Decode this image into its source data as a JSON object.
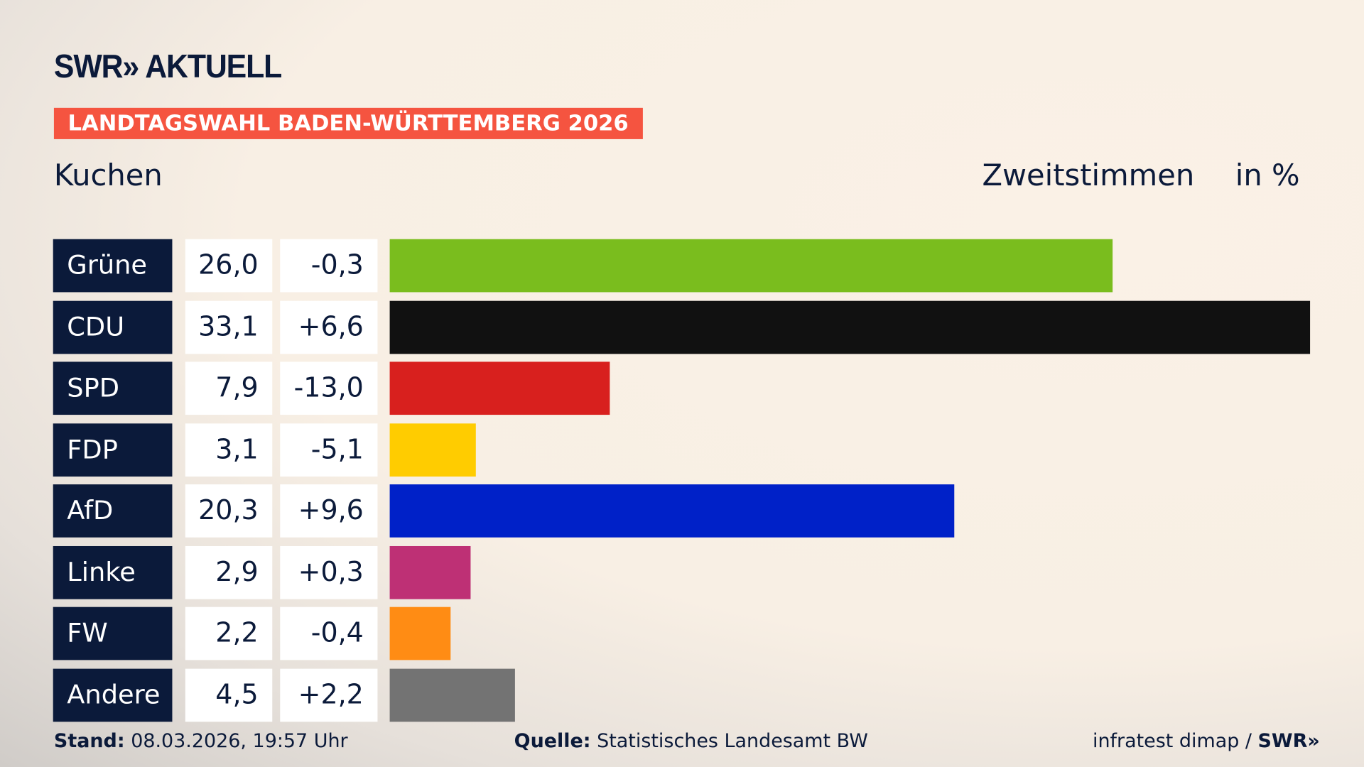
{
  "header": {
    "logo": "SWR» AKTUELL",
    "banner": "LANDTAGSWAHL BADEN-WÜRTTEMBERG 2026",
    "left_label": "Kuchen",
    "right_label": "Zweitstimmen",
    "unit": "in %"
  },
  "chart_data": {
    "type": "bar",
    "orientation": "horizontal",
    "categories": [
      "Grüne",
      "CDU",
      "SPD",
      "FDP",
      "AfD",
      "Linke",
      "FW",
      "Andere"
    ],
    "values": [
      26.0,
      33.1,
      7.9,
      3.1,
      20.3,
      2.9,
      2.2,
      4.5
    ],
    "value_labels": [
      "26,0",
      "33,1",
      "7,9",
      "3,1",
      "20,3",
      "2,9",
      "2,2",
      "4,5"
    ],
    "diff_labels": [
      "-0,3",
      "+6,6",
      "-13,0",
      "-5,1",
      "+9,6",
      "+0,3",
      "-0,4",
      "+2,2"
    ],
    "colors": [
      "#7abd1e",
      "#111111",
      "#d8201e",
      "#ffcc00",
      "#0021c8",
      "#be3075",
      "#ff8c14",
      "#737373"
    ],
    "xlim": [
      0,
      33.1
    ],
    "grid": false
  },
  "footer": {
    "stand_label": "Stand:",
    "stand_value": "08.03.2026, 19:57 Uhr",
    "source_label": "Quelle:",
    "source_value": "Statistisches Landesamt BW",
    "credit": "infratest dimap / ",
    "credit_logo": "SWR»"
  }
}
